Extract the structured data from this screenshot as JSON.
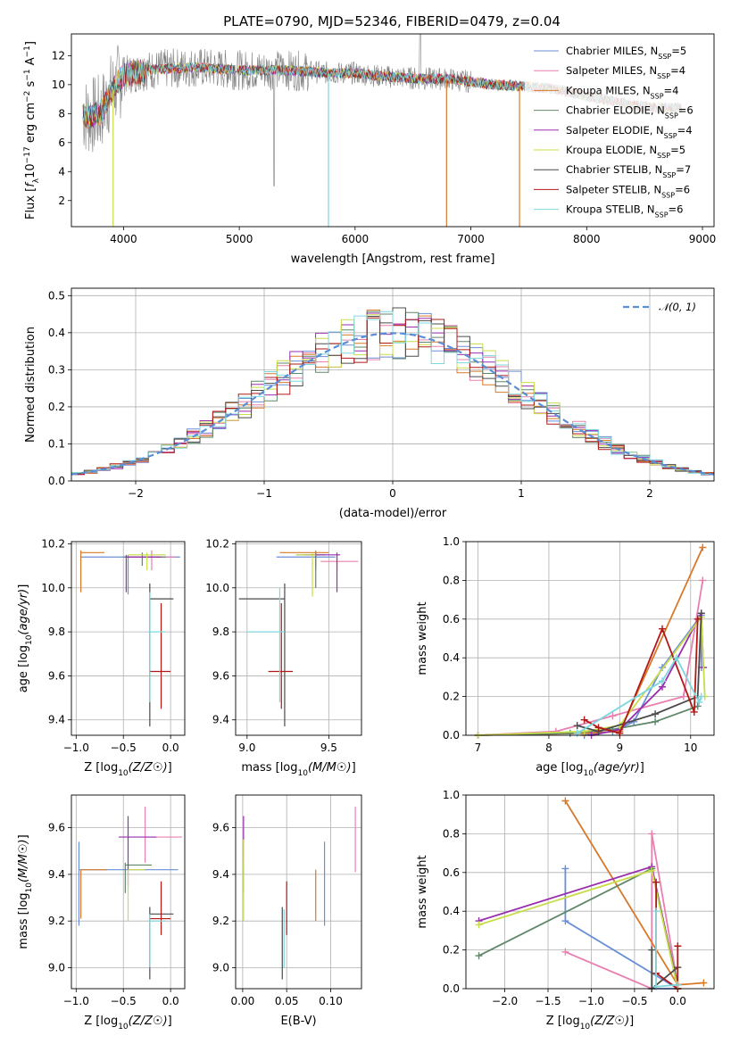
{
  "figure": {
    "title": "PLATE=0790, MJD=52346, FIBERID=0479, z=0.04"
  },
  "colors": {
    "Chabrier MILES": "#6a8fd6",
    "Salpeter MILES": "#e880b0",
    "Kroupa MILES": "#d8792a",
    "Chabrier ELODIE": "#5f876a",
    "Salpeter ELODIE": "#9a2fae",
    "Kroupa ELODIE": "#c9dc4a",
    "Chabrier STELIB": "#4b4b4b",
    "Salpeter STELIB": "#b31818",
    "Kroupa STELIB": "#7ed7dd",
    "normal": "#5b8ed6"
  },
  "chart_data": [
    {
      "type": "line",
      "title": "PLATE=0790, MJD=52346, FIBERID=0479, z=0.04",
      "xlabel": "wavelength [Angstrom, rest frame]",
      "ylabel": "Flux [fλ10⁻¹⁷ erg cm⁻² s⁻¹ A⁻¹]",
      "xlim": [
        3550,
        9100
      ],
      "ylim": [
        0.2,
        13.5
      ],
      "xticks": [
        4000,
        5000,
        6000,
        7000,
        8000,
        9000
      ],
      "yticks": [
        2,
        4,
        6,
        8,
        10,
        12
      ],
      "legend_position": "top-right",
      "grid": false,
      "series": [
        {
          "name": "Chabrier MILES, N_SSP=5",
          "label_main": "Chabrier MILES, N",
          "label_sub": "SSP",
          "label_end": "=5"
        },
        {
          "name": "Salpeter MILES, N_SSP=4",
          "label_main": "Salpeter MILES, N",
          "label_sub": "SSP",
          "label_end": "=4"
        },
        {
          "name": "Kroupa MILES, N_SSP=4",
          "label_main": "Kroupa MILES, N",
          "label_sub": "SSP",
          "label_end": "=4"
        },
        {
          "name": "Chabrier ELODIE, N_SSP=6",
          "label_main": "Chabrier ELODIE, N",
          "label_sub": "SSP",
          "label_end": "=6"
        },
        {
          "name": "Salpeter ELODIE, N_SSP=4",
          "label_main": "Salpeter ELODIE, N",
          "label_sub": "SSP",
          "label_end": "=4"
        },
        {
          "name": "Kroupa ELODIE, N_SSP=5",
          "label_main": "Kroupa ELODIE, N",
          "label_sub": "SSP",
          "label_end": "=5"
        },
        {
          "name": "Chabrier STELIB, N_SSP=7",
          "label_main": "Chabrier STELIB, N",
          "label_sub": "SSP",
          "label_end": "=7"
        },
        {
          "name": "Salpeter STELIB, N_SSP=6",
          "label_main": "Salpeter STELIB, N",
          "label_sub": "SSP",
          "label_end": "=6"
        },
        {
          "name": "Kroupa STELIB, N_SSP=6",
          "label_main": "Kroupa STELIB, N",
          "label_sub": "SSP",
          "label_end": "=6"
        }
      ],
      "continuum": {
        "x": [
          3650,
          3700,
          3800,
          3900,
          4000,
          4100,
          4200,
          4400,
          4600,
          4800,
          5000,
          5200,
          5400,
          5600,
          5800,
          6000,
          6200,
          6400,
          6600,
          6800,
          7000,
          7200,
          7400,
          7600,
          7800,
          8000,
          8200,
          8400,
          8600,
          8800
        ],
        "y": [
          8.0,
          7.8,
          8.0,
          9.6,
          10.6,
          10.8,
          11.0,
          11.1,
          11.2,
          11.1,
          11.0,
          11.0,
          11.0,
          10.9,
          10.8,
          10.8,
          10.6,
          10.5,
          10.4,
          10.4,
          10.2,
          10.0,
          9.9,
          9.8,
          9.6,
          9.2,
          8.9,
          8.6,
          8.4,
          8.4
        ]
      },
      "drops": [
        {
          "x": 3910,
          "series": "Kroupa ELODIE",
          "to": 0.2
        },
        {
          "x": 5770,
          "series": "Kroupa STELIB",
          "to": 0.2
        },
        {
          "x": 6790,
          "series": "Kroupa MILES",
          "to": 0.2
        },
        {
          "x": 7420,
          "series": "Kroupa MILES",
          "to": 0.2
        }
      ]
    },
    {
      "type": "area",
      "xlabel": "(data-model)/error",
      "ylabel": "Normed distribution",
      "xlim": [
        -2.5,
        2.5
      ],
      "ylim": [
        0,
        0.52
      ],
      "xticks": [
        -2,
        -1,
        0,
        1,
        2
      ],
      "yticks": [
        0.0,
        0.1,
        0.2,
        0.3,
        0.4,
        0.5
      ],
      "grid": true,
      "legend_position": "top-right",
      "reference_curve": {
        "name": "𝒩(0, 1)",
        "mean": 0,
        "sigma": 1
      },
      "histogram_model": "normal"
    },
    {
      "type": "scatter",
      "xlabel": "Z [log10(Z/Z☉)]",
      "ylabel": "age [log10(age/yr)]",
      "xlim": [
        -1.05,
        0.15
      ],
      "ylim": [
        9.33,
        10.21
      ],
      "xticks": [
        -1.0,
        -0.5,
        0.0
      ],
      "yticks": [
        9.4,
        9.6,
        9.8,
        10.0,
        10.2
      ],
      "grid": true,
      "points": [
        {
          "series": "Chabrier MILES",
          "x": -0.45,
          "y": 10.14,
          "ex": [
            -0.95,
            0.1
          ],
          "ey": [
            9.97,
            10.15
          ]
        },
        {
          "series": "Salpeter MILES",
          "x": -0.2,
          "y": 10.14,
          "ex": [
            -0.45,
            0.05
          ],
          "ey": [
            10.08,
            10.17
          ]
        },
        {
          "series": "Kroupa MILES",
          "x": -0.95,
          "y": 10.16,
          "ex": [
            -0.95,
            -0.7
          ],
          "ey": [
            9.98,
            10.17
          ]
        },
        {
          "series": "Chabrier ELODIE",
          "x": -0.3,
          "y": 10.14,
          "ex": [
            -0.5,
            -0.05
          ],
          "ey": [
            10.1,
            10.16
          ]
        },
        {
          "series": "Salpeter ELODIE",
          "x": -0.47,
          "y": 10.14,
          "ex": [
            -0.47,
            -0.1
          ],
          "ey": [
            9.98,
            10.15
          ]
        },
        {
          "series": "Kroupa ELODIE",
          "x": -0.25,
          "y": 10.15,
          "ex": [
            -0.45,
            -0.05
          ],
          "ey": [
            10.08,
            10.16
          ]
        },
        {
          "series": "Chabrier STELIB",
          "x": -0.22,
          "y": 9.95,
          "ex": [
            -0.22,
            0.03
          ],
          "ey": [
            9.37,
            10.02
          ]
        },
        {
          "series": "Salpeter STELIB",
          "x": -0.1,
          "y": 9.62,
          "ex": [
            -0.22,
            0.0
          ],
          "ey": [
            9.45,
            9.93
          ]
        },
        {
          "series": "Kroupa STELIB",
          "x": -0.22,
          "y": 9.8,
          "ex": [
            -0.24,
            -0.05
          ],
          "ey": [
            9.48,
            9.98
          ]
        }
      ]
    },
    {
      "type": "scatter",
      "xlabel": "mass [log10(M/M☉)]",
      "xlim": [
        8.93,
        9.7
      ],
      "ylim": [
        9.33,
        10.21
      ],
      "xticks": [
        9.0,
        9.5
      ],
      "yticks": [
        9.4,
        9.6,
        9.8,
        10.0,
        10.2
      ],
      "grid": true,
      "points": [
        {
          "series": "Chabrier MILES",
          "x": 9.42,
          "y": 10.14,
          "ex": [
            9.18,
            9.54
          ],
          "ey": [
            10.08,
            10.15
          ]
        },
        {
          "series": "Salpeter MILES",
          "x": 9.55,
          "y": 10.12,
          "ex": [
            9.45,
            9.68
          ],
          "ey": [
            10.08,
            10.15
          ]
        },
        {
          "series": "Kroupa MILES",
          "x": 9.42,
          "y": 10.16,
          "ex": [
            9.2,
            9.5
          ],
          "ey": [
            10.1,
            10.17
          ]
        },
        {
          "series": "Chabrier ELODIE",
          "x": 9.42,
          "y": 10.15,
          "ex": [
            9.3,
            9.48
          ],
          "ey": [
            10.0,
            10.16
          ]
        },
        {
          "series": "Salpeter ELODIE",
          "x": 9.55,
          "y": 10.15,
          "ex": [
            9.35,
            9.57
          ],
          "ey": [
            9.98,
            10.16
          ]
        },
        {
          "series": "Kroupa ELODIE",
          "x": 9.4,
          "y": 10.15,
          "ex": [
            9.3,
            9.42
          ],
          "ey": [
            9.96,
            10.16
          ]
        },
        {
          "series": "Chabrier STELIB",
          "x": 9.23,
          "y": 9.95,
          "ex": [
            8.95,
            9.23
          ],
          "ey": [
            9.37,
            10.02
          ]
        },
        {
          "series": "Salpeter STELIB",
          "x": 9.21,
          "y": 9.62,
          "ex": [
            9.13,
            9.28
          ],
          "ey": [
            9.45,
            9.93
          ]
        },
        {
          "series": "Kroupa STELIB",
          "x": 9.2,
          "y": 9.8,
          "ex": [
            9.0,
            9.23
          ],
          "ey": [
            9.48,
            10.0
          ]
        }
      ]
    },
    {
      "type": "line",
      "xlabel": "age [log10(age/yr)]",
      "ylabel": "mass weight",
      "xlim": [
        6.83,
        10.33
      ],
      "ylim": [
        0,
        1.0
      ],
      "xticks": [
        7,
        8,
        9,
        10
      ],
      "yticks": [
        0.0,
        0.2,
        0.4,
        0.6,
        0.8,
        1.0
      ],
      "grid": true,
      "series": [
        {
          "series": "Chabrier MILES",
          "x": [
            8.5,
            8.9,
            9.2,
            9.6,
            10.15,
            10.15
          ],
          "y": [
            0.0,
            0.02,
            0.07,
            0.35,
            0.62,
            0.35
          ]
        },
        {
          "series": "Salpeter MILES",
          "x": [
            7.0,
            8.1,
            8.9,
            9.9,
            10.17
          ],
          "y": [
            0.0,
            0.02,
            0.1,
            0.2,
            0.8
          ]
        },
        {
          "series": "Kroupa MILES",
          "x": [
            7.0,
            8.5,
            9.0,
            10.17
          ],
          "y": [
            0.0,
            0.01,
            0.02,
            0.97
          ]
        },
        {
          "series": "Chabrier ELODIE",
          "x": [
            7.0,
            8.3,
            8.9,
            9.5,
            10.1
          ],
          "y": [
            0.0,
            0.01,
            0.03,
            0.07,
            0.15
          ]
        },
        {
          "series": "Salpeter ELODIE",
          "x": [
            8.6,
            9.0,
            9.6,
            10.15,
            10.18
          ],
          "y": [
            0.0,
            0.03,
            0.25,
            0.63,
            0.35
          ]
        },
        {
          "series": "Kroupa ELODIE",
          "x": [
            7.0,
            8.5,
            9.0,
            10.15,
            10.2
          ],
          "y": [
            0.0,
            0.02,
            0.05,
            0.61,
            0.2
          ]
        },
        {
          "series": "Chabrier STELIB",
          "x": [
            8.4,
            8.7,
            9.5,
            10.1,
            10.15
          ],
          "y": [
            0.05,
            0.02,
            0.11,
            0.2,
            0.63
          ]
        },
        {
          "series": "Salpeter STELIB",
          "x": [
            8.5,
            8.7,
            9.0,
            9.6,
            10.05,
            10.1
          ],
          "y": [
            0.08,
            0.04,
            0.01,
            0.55,
            0.12,
            0.6
          ]
        },
        {
          "series": "Kroupa STELIB",
          "x": [
            8.4,
            9.6,
            9.8,
            10.12,
            10.15
          ],
          "y": [
            0.01,
            0.28,
            0.4,
            0.17,
            0.2
          ]
        }
      ]
    },
    {
      "type": "scatter",
      "xlabel": "Z [log10(Z/Z☉)]",
      "ylabel": "mass [log10(M/M☉)]",
      "xlim": [
        -1.05,
        0.15
      ],
      "ylim": [
        8.91,
        9.74
      ],
      "xticks": [
        -1.0,
        -0.5,
        0.0
      ],
      "yticks": [
        9.0,
        9.2,
        9.4,
        9.6
      ],
      "grid": true,
      "points": [
        {
          "series": "Chabrier MILES",
          "x": -0.97,
          "y": 9.42,
          "ex": [
            -0.97,
            0.08
          ],
          "ey": [
            9.18,
            9.54
          ]
        },
        {
          "series": "Salpeter MILES",
          "x": -0.27,
          "y": 9.56,
          "ex": [
            -0.27,
            0.12
          ],
          "ey": [
            9.45,
            9.69
          ]
        },
        {
          "series": "Kroupa MILES",
          "x": -0.95,
          "y": 9.42,
          "ex": [
            -0.95,
            -0.67
          ],
          "ey": [
            9.21,
            9.42
          ]
        },
        {
          "series": "Chabrier ELODIE",
          "x": -0.48,
          "y": 9.44,
          "ex": [
            -0.48,
            -0.2
          ],
          "ey": [
            9.32,
            9.45
          ]
        },
        {
          "series": "Salpeter ELODIE",
          "x": -0.45,
          "y": 9.56,
          "ex": [
            -0.55,
            -0.15
          ],
          "ey": [
            9.35,
            9.65
          ]
        },
        {
          "series": "Kroupa ELODIE",
          "x": -0.45,
          "y": 9.42,
          "ex": [
            -0.45,
            -0.27
          ],
          "ey": [
            9.2,
            9.42
          ]
        },
        {
          "series": "Chabrier STELIB",
          "x": -0.22,
          "y": 9.23,
          "ex": [
            -0.22,
            0.03
          ],
          "ey": [
            8.95,
            9.26
          ]
        },
        {
          "series": "Salpeter STELIB",
          "x": -0.1,
          "y": 9.21,
          "ex": [
            -0.22,
            0.0
          ],
          "ey": [
            9.14,
            9.37
          ]
        },
        {
          "series": "Kroupa STELIB",
          "x": -0.22,
          "y": 9.2,
          "ex": [
            -0.24,
            -0.05
          ],
          "ey": [
            9.0,
            9.23
          ]
        }
      ]
    },
    {
      "type": "scatter",
      "xlabel": "E(B-V)",
      "xlim": [
        -0.008,
        0.135
      ],
      "ylim": [
        8.91,
        9.74
      ],
      "xticks": [
        0.0,
        0.05,
        0.1
      ],
      "yticks": [
        9.0,
        9.2,
        9.4,
        9.6
      ],
      "grid": true,
      "points": [
        {
          "series": "Chabrier MILES",
          "x": 0.093,
          "ey": [
            9.18,
            9.54
          ]
        },
        {
          "series": "Salpeter MILES",
          "x": 0.128,
          "ey": [
            9.41,
            9.69
          ]
        },
        {
          "series": "Kroupa MILES",
          "x": 0.083,
          "ey": [
            9.2,
            9.42
          ]
        },
        {
          "series": "Chabrier ELODIE",
          "x": 0.001,
          "ey": [
            9.32,
            9.45
          ]
        },
        {
          "series": "Salpeter ELODIE",
          "x": 0.001,
          "ey": [
            9.45,
            9.65
          ]
        },
        {
          "series": "Kroupa ELODIE",
          "x": 0.001,
          "ey": [
            9.2,
            9.55
          ]
        },
        {
          "series": "Chabrier STELIB",
          "x": 0.045,
          "ey": [
            8.95,
            9.26
          ]
        },
        {
          "series": "Salpeter STELIB",
          "x": 0.05,
          "ey": [
            9.14,
            9.37
          ]
        },
        {
          "series": "Kroupa STELIB",
          "x": 0.047,
          "ey": [
            9.0,
            9.25
          ]
        }
      ]
    },
    {
      "type": "line",
      "xlabel": "Z [log10(Z/Z☉)]",
      "ylabel": "mass weight",
      "xlim": [
        -2.45,
        0.42
      ],
      "ylim": [
        0,
        1.0
      ],
      "xticks": [
        -2.0,
        -1.5,
        -1.0,
        -0.5,
        0.0
      ],
      "yticks": [
        0.0,
        0.2,
        0.4,
        0.6,
        0.8,
        1.0
      ],
      "grid": true,
      "series": [
        {
          "series": "Chabrier MILES",
          "x": [
            -1.3,
            -1.3,
            0.0,
            -0.3
          ],
          "y": [
            0.62,
            0.35,
            0.0,
            0.0
          ]
        },
        {
          "series": "Salpeter MILES",
          "x": [
            -1.3,
            -0.3,
            -0.3,
            0.0
          ],
          "y": [
            0.19,
            0.0,
            0.8,
            0.02
          ]
        },
        {
          "series": "Kroupa MILES",
          "x": [
            -1.3,
            0.0,
            0.3
          ],
          "y": [
            0.97,
            0.02,
            0.03
          ]
        },
        {
          "series": "Chabrier ELODIE",
          "x": [
            -2.3,
            -0.3,
            0.0
          ],
          "y": [
            0.17,
            0.62,
            0.02
          ]
        },
        {
          "series": "Salpeter ELODIE",
          "x": [
            -2.3,
            -0.3,
            0.0
          ],
          "y": [
            0.35,
            0.63,
            0.0
          ]
        },
        {
          "series": "Kroupa ELODIE",
          "x": [
            -2.3,
            -0.3,
            0.0
          ],
          "y": [
            0.33,
            0.61,
            0.0
          ]
        },
        {
          "series": "Chabrier STELIB",
          "x": [
            -0.3,
            -0.3,
            0.0
          ],
          "y": [
            0.2,
            0.0,
            0.11
          ]
        },
        {
          "series": "Salpeter STELIB",
          "x": [
            -0.25,
            -0.25,
            0.0,
            0.0
          ],
          "y": [
            0.55,
            0.08,
            0.0,
            0.22
          ]
        },
        {
          "series": "Kroupa STELIB",
          "x": [
            -0.25,
            -0.25,
            0.0
          ],
          "y": [
            0.4,
            0.01,
            0.02
          ]
        }
      ]
    }
  ]
}
